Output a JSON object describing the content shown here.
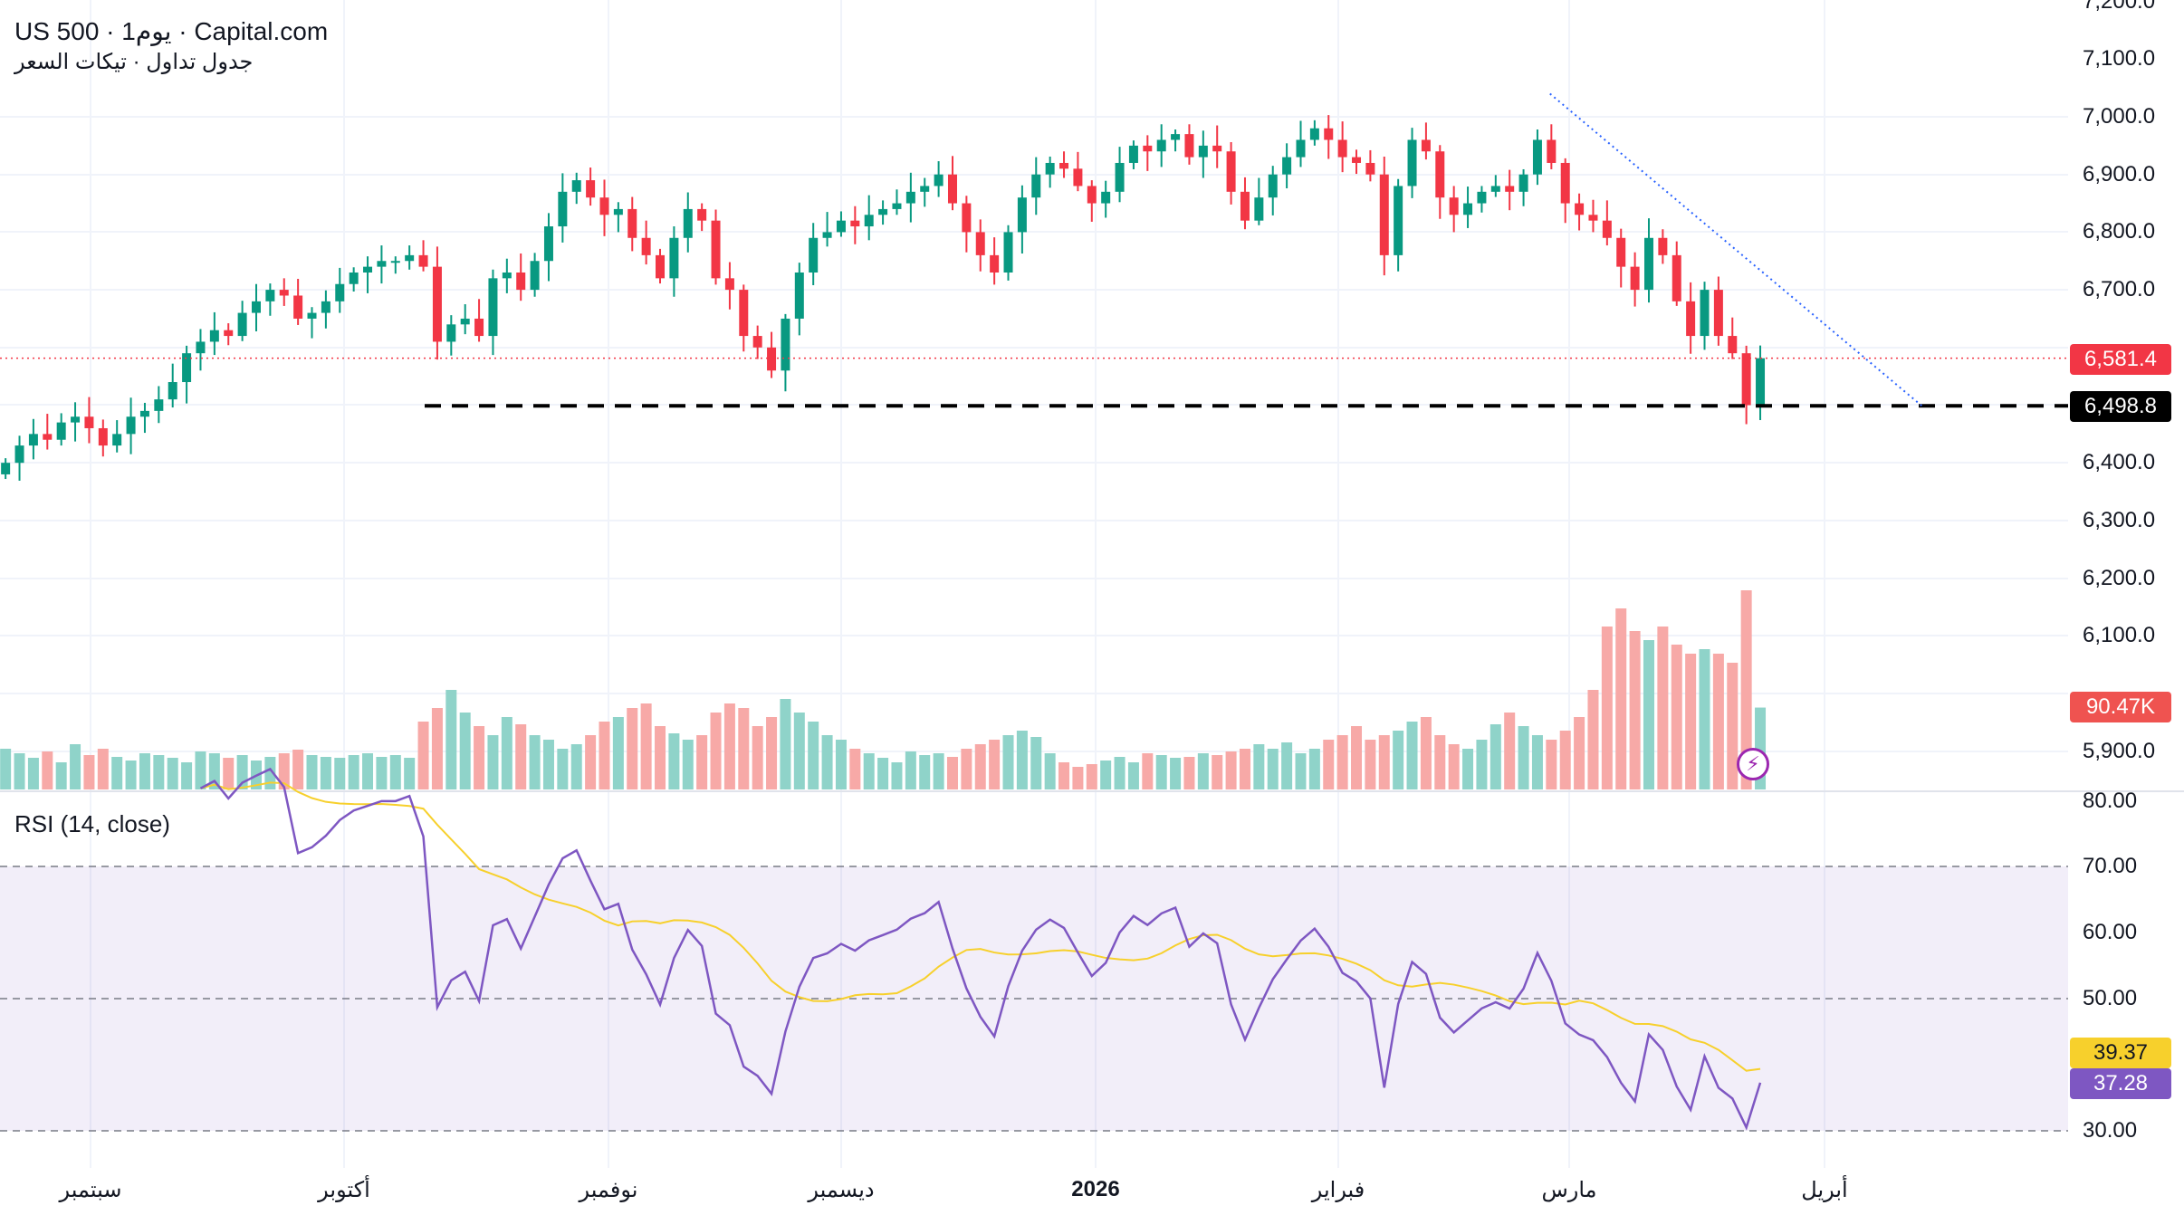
{
  "header": {
    "title": "US 500 · 1يوم · Capital.com",
    "subtitle": "جدول تداول · تيكات السعر"
  },
  "rsi_title": "RSI (14, close)",
  "price_axis": [
    "7,200.0",
    "7,100.0",
    "7,000.0",
    "6,900.0",
    "6,800.0",
    "6,700.0",
    "6,400.0",
    "6,300.0",
    "6,200.0",
    "6,100.0",
    "5,900.0"
  ],
  "rsi_axis": [
    "80.00",
    "70.00",
    "60.00",
    "50.00",
    "30.00"
  ],
  "tags": {
    "last_price": "6,581.4",
    "level": "6,498.8",
    "volume": "90.47K",
    "rsi_ma": "39.37",
    "rsi": "37.28"
  },
  "x_labels": [
    "سبتمبر",
    "أكتوبر",
    "نوفمبر",
    "ديسمبر",
    "2026",
    "فبراير",
    "مارس",
    "أبريل"
  ],
  "colors": {
    "up": "#089981",
    "down": "#f23645",
    "vol_up": "#8fd3c9",
    "vol_down": "#f7a9a7",
    "rsi": "#7e57c2",
    "rsi_ma": "#f7d02c",
    "trend": "#2962ff"
  },
  "chart_data": {
    "type": "candlestick",
    "title": "US 500 · 1D · Capital.com",
    "ylim": [
      5880,
      7200
    ],
    "rsi_ylim": [
      25,
      80
    ],
    "horizontal_level": 6498.8,
    "last_price": 6581.4,
    "trendline": [
      [
        1113,
        7040
      ],
      [
        1380,
        6498.8
      ]
    ],
    "closes": [
      6400,
      6430,
      6450,
      6440,
      6470,
      6480,
      6460,
      6430,
      6450,
      6480,
      6490,
      6510,
      6540,
      6590,
      6610,
      6630,
      6620,
      6660,
      6680,
      6700,
      6690,
      6650,
      6660,
      6680,
      6710,
      6730,
      6740,
      6750,
      6750,
      6760,
      6740,
      6610,
      6640,
      6650,
      6620,
      6720,
      6730,
      6700,
      6750,
      6810,
      6870,
      6890,
      6860,
      6830,
      6840,
      6790,
      6760,
      6720,
      6790,
      6840,
      6820,
      6720,
      6700,
      6620,
      6600,
      6560,
      6650,
      6730,
      6790,
      6800,
      6820,
      6810,
      6830,
      6840,
      6850,
      6870,
      6880,
      6900,
      6850,
      6800,
      6760,
      6730,
      6800,
      6860,
      6900,
      6920,
      6910,
      6880,
      6850,
      6870,
      6920,
      6950,
      6940,
      6960,
      6970,
      6930,
      6950,
      6940,
      6870,
      6820,
      6860,
      6900,
      6930,
      6960,
      6980,
      6960,
      6930,
      6920,
      6900,
      6760,
      6880,
      6960,
      6940,
      6860,
      6830,
      6850,
      6870,
      6880,
      6870,
      6900,
      6960,
      6920,
      6850,
      6830,
      6820,
      6790,
      6740,
      6700,
      6790,
      6760,
      6680,
      6620,
      6700,
      6620,
      6590,
      6500,
      6581.4
    ],
    "volumes_k": [
      45,
      40,
      35,
      42,
      30,
      50,
      38,
      45,
      36,
      32,
      40,
      38,
      35,
      30,
      42,
      40,
      35,
      38,
      32,
      36,
      40,
      44,
      38,
      36,
      35,
      38,
      40,
      36,
      38,
      35,
      75,
      90,
      110,
      85,
      70,
      60,
      80,
      72,
      60,
      55,
      45,
      50,
      60,
      75,
      80,
      90,
      95,
      70,
      62,
      55,
      60,
      85,
      95,
      90,
      70,
      80,
      100,
      85,
      75,
      60,
      55,
      45,
      40,
      35,
      30,
      42,
      38,
      40,
      36,
      45,
      50,
      55,
      60,
      65,
      58,
      40,
      30,
      25,
      28,
      32,
      36,
      30,
      40,
      38,
      35,
      36,
      40,
      38,
      42,
      45,
      50,
      45,
      52,
      40,
      45,
      55,
      60,
      70,
      55,
      60,
      65,
      75,
      80,
      60,
      50,
      45,
      55,
      72,
      85,
      70,
      60,
      55,
      65,
      80,
      110,
      180,
      200,
      175,
      165,
      180,
      160,
      150,
      155,
      150,
      140,
      220,
      90.47
    ],
    "rsi_last": 37.28,
    "rsi_ma_last": 39.37
  }
}
